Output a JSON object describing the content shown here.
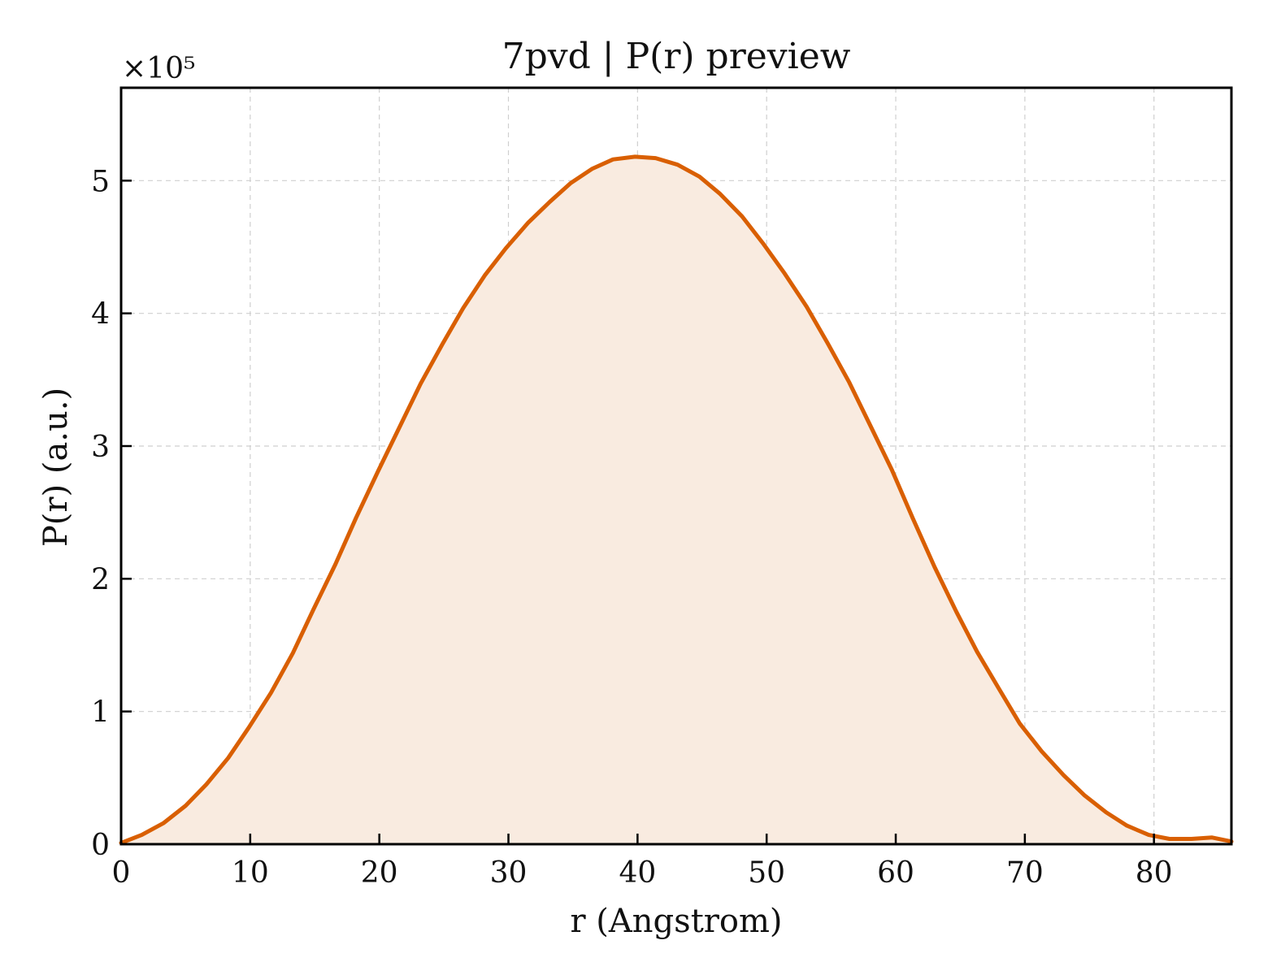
{
  "chart_data": {
    "type": "area",
    "title": "7pvd | P(r) preview",
    "xlabel": "r (Angstrom)",
    "ylabel": "P(r) (a.u.)",
    "y_offset_label": "×10⁵",
    "y_scale": 100000,
    "xlim": [
      0,
      86
    ],
    "ylim": [
      0,
      5.7
    ],
    "x_ticks": [
      0,
      10,
      20,
      30,
      40,
      50,
      60,
      70,
      80
    ],
    "y_ticks": [
      0,
      1,
      2,
      3,
      4,
      5
    ],
    "grid": true,
    "ticks_direction": "in",
    "colors": {
      "line": "#d95f02",
      "fill": "#f9ebe0"
    },
    "series": [
      {
        "x": [
          0,
          1.6,
          3.3,
          5.0,
          6.6,
          8.3,
          9.9,
          11.6,
          13.3,
          14.9,
          16.6,
          18.2,
          19.9,
          21.6,
          23.2,
          24.9,
          26.5,
          28.2,
          29.8,
          31.5,
          33.2,
          34.8,
          36.5,
          38.1,
          39.8,
          41.4,
          43.1,
          44.8,
          46.4,
          48.1,
          49.7,
          51.4,
          53.1,
          54.7,
          56.4,
          58.0,
          59.7,
          61.3,
          63.0,
          64.7,
          66.3,
          68.0,
          69.6,
          71.3,
          73.0,
          74.6,
          76.3,
          77.9,
          79.6,
          81.2,
          82.9,
          84.5,
          86.0
        ],
        "y": [
          0.01,
          0.07,
          0.16,
          0.29,
          0.45,
          0.65,
          0.88,
          1.14,
          1.44,
          1.77,
          2.11,
          2.46,
          2.81,
          3.15,
          3.47,
          3.77,
          4.04,
          4.29,
          4.49,
          4.68,
          4.84,
          4.98,
          5.09,
          5.16,
          5.18,
          5.17,
          5.12,
          5.03,
          4.9,
          4.73,
          4.53,
          4.3,
          4.05,
          3.78,
          3.48,
          3.16,
          2.82,
          2.46,
          2.09,
          1.75,
          1.45,
          1.17,
          0.91,
          0.7,
          0.52,
          0.37,
          0.24,
          0.14,
          0.07,
          0.04,
          0.04,
          0.05,
          0.02
        ]
      }
    ]
  }
}
